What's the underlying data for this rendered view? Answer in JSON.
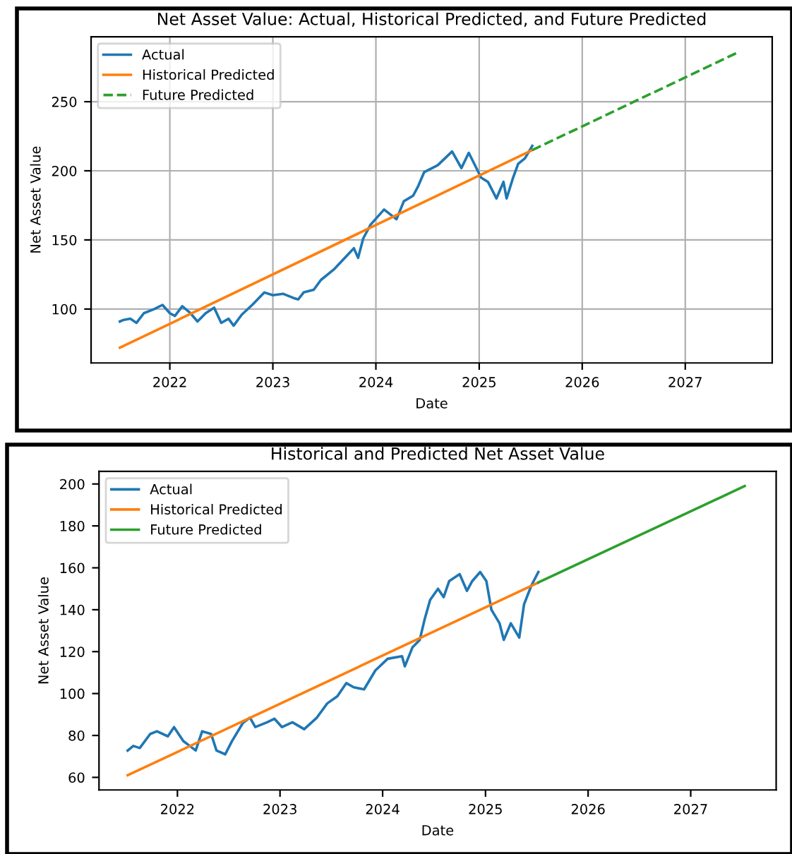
{
  "chart_data": [
    {
      "type": "line",
      "title": "Net Asset Value: Actual, Historical Predicted, and Future Predicted",
      "xlabel": "Date",
      "ylabel": "Net Asset Value",
      "xlim": [
        "2021-03-28",
        "2027-11-05"
      ],
      "xticks": [
        "2022",
        "2023",
        "2024",
        "2025",
        "2026",
        "2027"
      ],
      "ylim": [
        61,
        297
      ],
      "yticks": [
        100,
        150,
        200,
        250
      ],
      "grid": true,
      "legend": "top left",
      "series": [
        {
          "name": "Actual",
          "color": "#1f77b4",
          "line_style": "solid",
          "x": [
            "2021-07-08",
            "2021-07-19",
            "2021-08-14",
            "2021-09-05",
            "2021-10-01",
            "2021-11-07",
            "2021-12-06",
            "2022-01-01",
            "2022-01-19",
            "2022-02-14",
            "2022-03-15",
            "2022-04-09",
            "2022-05-08",
            "2022-06-07",
            "2022-07-02",
            "2022-07-28",
            "2022-08-15",
            "2022-09-13",
            "2022-10-20",
            "2022-12-02",
            "2023-01-01",
            "2023-02-07",
            "2023-03-15",
            "2023-04-01",
            "2023-04-20",
            "2023-05-26",
            "2023-06-20",
            "2023-08-07",
            "2023-10-15",
            "2023-10-30",
            "2023-11-17",
            "2023-12-13",
            "2024-01-30",
            "2024-03-14",
            "2024-04-09",
            "2024-05-12",
            "2024-05-30",
            "2024-06-20",
            "2024-08-07",
            "2024-09-27",
            "2024-10-30",
            "2024-11-25",
            "2025-01-08",
            "2025-02-01",
            "2025-03-03",
            "2025-03-28",
            "2025-04-08",
            "2025-05-01",
            "2025-05-19",
            "2025-06-12",
            "2025-07-08"
          ],
          "values": [
            91,
            92,
            93,
            90,
            97,
            100,
            103,
            97,
            95,
            102,
            97,
            91,
            97,
            101,
            90,
            93,
            88,
            96,
            103,
            112,
            110,
            111,
            108,
            107,
            112,
            114,
            121,
            129,
            144,
            137,
            151,
            161,
            172,
            165,
            178,
            182,
            189,
            199,
            204,
            214,
            202,
            213,
            195,
            192,
            180,
            192,
            180,
            195,
            205,
            209,
            218
          ]
        },
        {
          "name": "Historical Predicted",
          "color": "#ff7f0e",
          "line_style": "solid",
          "x": [
            "2021-07-08",
            "2025-07-08"
          ],
          "values": [
            72,
            215
          ]
        },
        {
          "name": "Future Predicted",
          "color": "#2ca02c",
          "line_style": "dashed",
          "x": [
            "2025-07-08",
            "2027-07-10"
          ],
          "values": [
            215,
            286
          ]
        }
      ]
    },
    {
      "type": "line",
      "title": "Historical and Predicted Net Asset Value",
      "xlabel": "Date",
      "ylabel": "Net Asset Value",
      "xlim": [
        "2021-03-28",
        "2027-11-01"
      ],
      "xticks": [
        "2022",
        "2023",
        "2024",
        "2025",
        "2026",
        "2027"
      ],
      "ylim": [
        54,
        206
      ],
      "yticks": [
        60,
        80,
        100,
        120,
        140,
        160,
        180,
        200
      ],
      "grid": false,
      "legend": "top left",
      "series": [
        {
          "name": "Actual",
          "color": "#1f77b4",
          "line_style": "solid",
          "x": [
            "2021-07-08",
            "2021-07-28",
            "2021-08-20",
            "2021-09-26",
            "2021-10-20",
            "2021-11-28",
            "2021-12-20",
            "2022-01-22",
            "2022-02-14",
            "2022-03-07",
            "2022-03-30",
            "2022-05-01",
            "2022-05-20",
            "2022-06-20",
            "2022-07-14",
            "2022-08-22",
            "2022-09-16",
            "2022-10-05",
            "2022-11-16",
            "2022-12-12",
            "2023-01-08",
            "2023-02-14",
            "2023-03-28",
            "2023-05-12",
            "2023-06-18",
            "2023-07-24",
            "2023-08-25",
            "2023-09-20",
            "2023-10-27",
            "2023-12-06",
            "2024-01-19",
            "2024-03-10",
            "2024-03-20",
            "2024-04-16",
            "2024-05-12",
            "2024-05-30",
            "2024-06-18",
            "2024-07-16",
            "2024-08-05",
            "2024-08-25",
            "2024-10-01",
            "2024-10-27",
            "2024-11-15",
            "2024-12-13",
            "2025-01-04",
            "2025-01-22",
            "2025-02-20",
            "2025-03-07",
            "2025-04-01",
            "2025-05-01",
            "2025-05-18",
            "2025-06-13",
            "2025-07-08"
          ],
          "values": [
            72.8,
            75,
            74,
            80.7,
            82,
            79.6,
            84,
            77.3,
            75,
            72.8,
            82,
            80.7,
            72.8,
            71,
            77.3,
            86,
            88.5,
            84,
            86.3,
            88,
            84,
            86.3,
            83,
            88.5,
            95.3,
            98.7,
            105,
            103,
            102,
            111,
            116.6,
            117.8,
            113,
            122,
            125.6,
            135.7,
            144.7,
            150,
            146,
            153.7,
            157,
            149,
            153.7,
            158,
            153.7,
            140,
            133.5,
            125.6,
            133.5,
            126.7,
            142.5,
            151.5,
            158
          ]
        },
        {
          "name": "Historical Predicted",
          "color": "#ff7f0e",
          "line_style": "solid",
          "x": [
            "2021-07-08",
            "2025-07-08"
          ],
          "values": [
            61,
            153
          ]
        },
        {
          "name": "Future Predicted",
          "color": "#2ca02c",
          "line_style": "solid",
          "x": [
            "2025-07-08",
            "2027-07-12"
          ],
          "values": [
            153,
            199
          ]
        }
      ]
    }
  ]
}
